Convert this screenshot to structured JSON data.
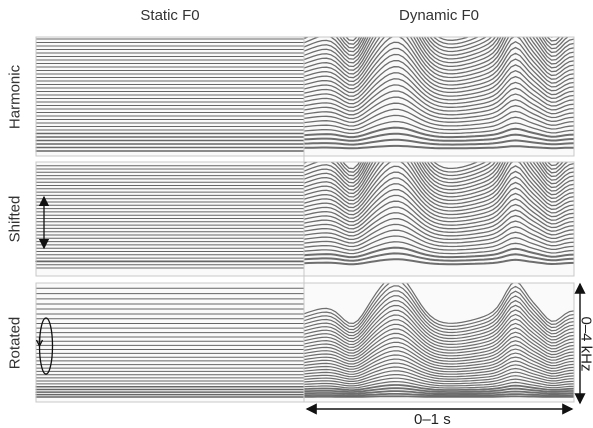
{
  "columns": [
    "Static F0",
    "Dynamic F0"
  ],
  "rows": [
    "Harmonic",
    "Shifted",
    "Rotated"
  ],
  "time_axis_label": "0–1 s",
  "freq_axis_label": "0–4 kHz",
  "colors": {
    "line": "#555555",
    "frame": "#c8c8c8",
    "arrow": "#111111"
  }
}
